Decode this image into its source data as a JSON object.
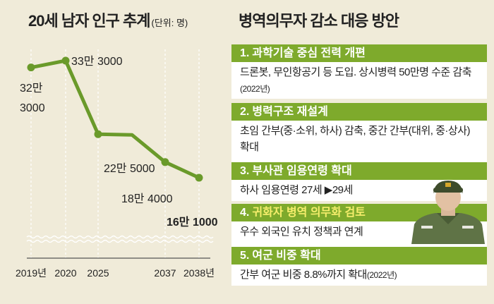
{
  "left": {
    "title": "20세 남자 인구 추계",
    "unit": "(단위: 명)"
  },
  "chart_data": {
    "type": "line",
    "title": "20세 남자 인구 추계",
    "unit": "명",
    "categories": [
      "2019년",
      "2020",
      "2025",
      "2037",
      "2038년"
    ],
    "x": [
      2019,
      2020,
      2025,
      2026,
      2037,
      2038
    ],
    "values": [
      323000,
      333000,
      225000,
      224000,
      184000,
      161000
    ],
    "point_labels": [
      {
        "index": 0,
        "line1": "32만",
        "line2": "3000"
      },
      {
        "index": 1,
        "line1": "33만 3000",
        "line2": ""
      },
      {
        "index": 2,
        "line1": "22만 5000",
        "line2": ""
      },
      {
        "index": 4,
        "line1": "18만 4000",
        "line2": ""
      },
      {
        "index": 5,
        "line1": "16만 1000",
        "line2": ""
      }
    ],
    "axis_break": true,
    "line_color": "#6a9a2a",
    "grid": "vertical-dashed"
  },
  "right": {
    "title": "병역의무자 감소 대응 방안",
    "items": [
      {
        "num": "1.",
        "head": "과학기술 중심 전력 개편",
        "body": "드론봇, 무인항공기 등 도입. 상시병력 50만명 수준 감축",
        "note": "(2022년)",
        "highlight": false
      },
      {
        "num": "2.",
        "head": "병력구조 재설계",
        "body": "초임 간부(중·소위, 하사) 감축, 중간 간부(대위, 중·상사) 확대",
        "note": "",
        "highlight": false
      },
      {
        "num": "3.",
        "head": "부사관 임용연령 확대",
        "body": "하사 임용연령 27세 ▶29세",
        "note": "",
        "highlight": false
      },
      {
        "num": "4.",
        "head": "귀화자 병역 의무화 검토",
        "body": "우수 외국인 유치 정책과 연계",
        "note": "",
        "highlight": true
      },
      {
        "num": "5.",
        "head": "여군 비중 확대",
        "body": "간부 여군 비중 8.8%까지 확대",
        "note": "(2022년)",
        "highlight": false
      }
    ]
  },
  "colors": {
    "background": "#f0ebd9",
    "accent": "#7eaa2c",
    "highlight_text": "#f6ee6c",
    "soldier_uniform": "#5f7346"
  }
}
